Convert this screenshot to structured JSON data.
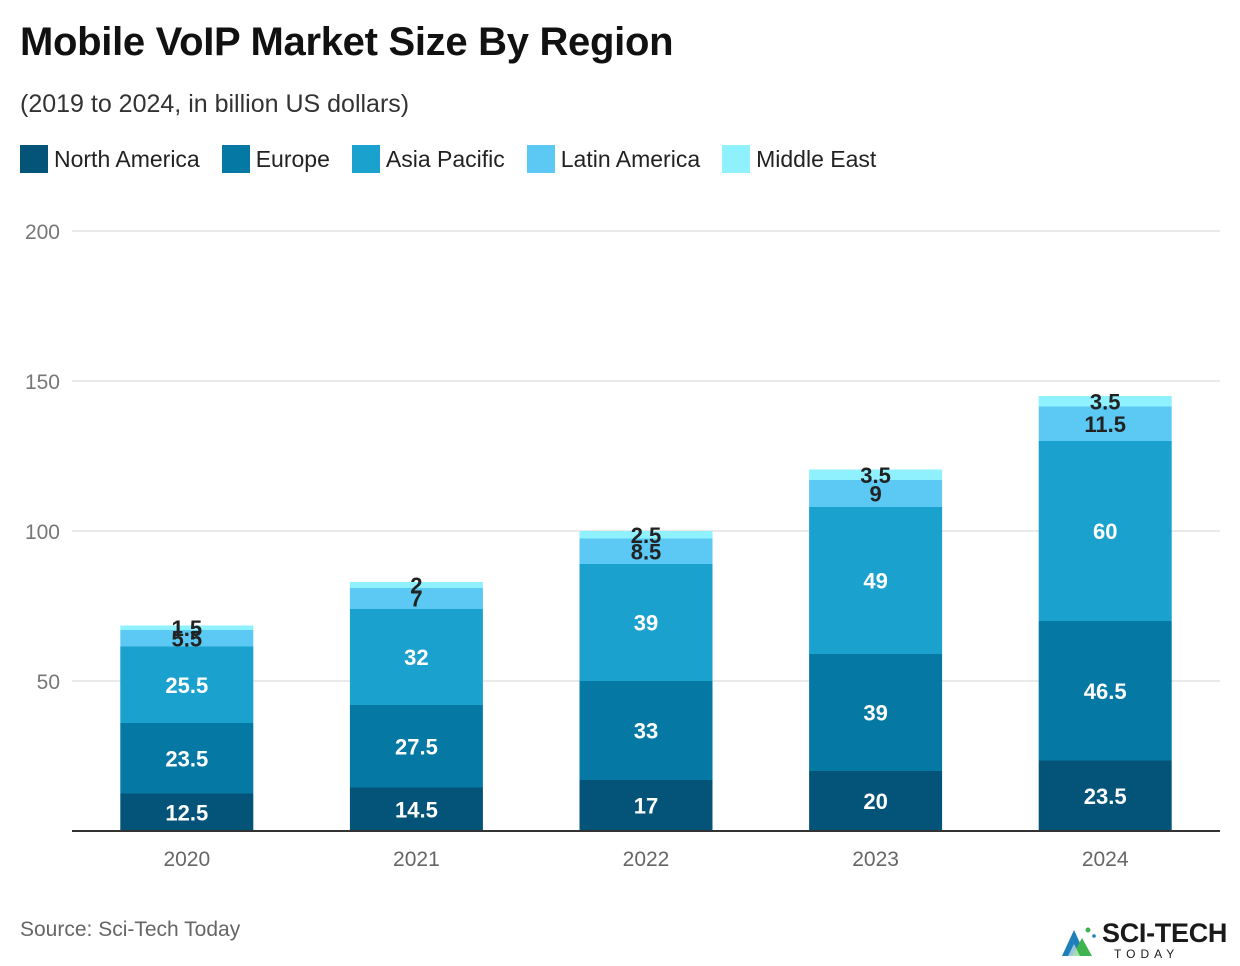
{
  "title": "Mobile VoIP Market Size By Region",
  "subtitle": "(2019 to 2024, in billion US dollars)",
  "source": "Source: Sci-Tech Today",
  "logo": {
    "main": "SCI-TECH",
    "sub": "TODAY"
  },
  "colors": {
    "north_america": "#04547a",
    "europe": "#0579a4",
    "asia_pacific": "#1aa1ce",
    "latin_america": "#5bc9f4",
    "middle_east": "#8ff0fe",
    "grid": "#e2e2e2",
    "axis": "#333333",
    "tick": "#777777"
  },
  "chart_data": {
    "type": "bar",
    "stacked": true,
    "title": "Mobile VoIP Market Size By Region",
    "subtitle": "(2019 to 2024, in billion US dollars)",
    "xlabel": "",
    "ylabel": "",
    "ylim": [
      0,
      200
    ],
    "yticks": [
      50,
      100,
      150,
      200
    ],
    "grid": true,
    "legend_position": "top-left",
    "categories": [
      "2020",
      "2021",
      "2022",
      "2023",
      "2024"
    ],
    "series": [
      {
        "name": "North America",
        "color": "#04547a",
        "values": [
          12.5,
          14.5,
          17,
          20,
          23.5
        ],
        "labels": [
          "12.5",
          "14.5",
          "17",
          "20",
          "23.5"
        ],
        "label_color": "#ffffff"
      },
      {
        "name": "Europe",
        "color": "#0579a4",
        "values": [
          23.5,
          27.5,
          33,
          39,
          46.5
        ],
        "labels": [
          "23.5",
          "27.5",
          "33",
          "39",
          "46.5"
        ],
        "label_color": "#ffffff"
      },
      {
        "name": "Asia Pacific",
        "color": "#1aa1ce",
        "values": [
          25.5,
          32,
          39,
          49,
          60
        ],
        "labels": [
          "25.5",
          "32",
          "39",
          "49",
          "60"
        ],
        "label_color": "#ffffff"
      },
      {
        "name": "Latin America",
        "color": "#5bc9f4",
        "values": [
          5.5,
          7,
          8.5,
          9,
          11.5
        ],
        "labels": [
          "5.5",
          "7",
          "8.5",
          "9",
          "11.5"
        ],
        "label_color": "#222222"
      },
      {
        "name": "Middle East",
        "color": "#8ff0fe",
        "values": [
          1.5,
          2,
          2.5,
          3.5,
          3.5
        ],
        "labels": [
          "1.5",
          "2",
          "2.5",
          "3.5",
          "3.5"
        ],
        "label_color": "#222222"
      }
    ]
  }
}
